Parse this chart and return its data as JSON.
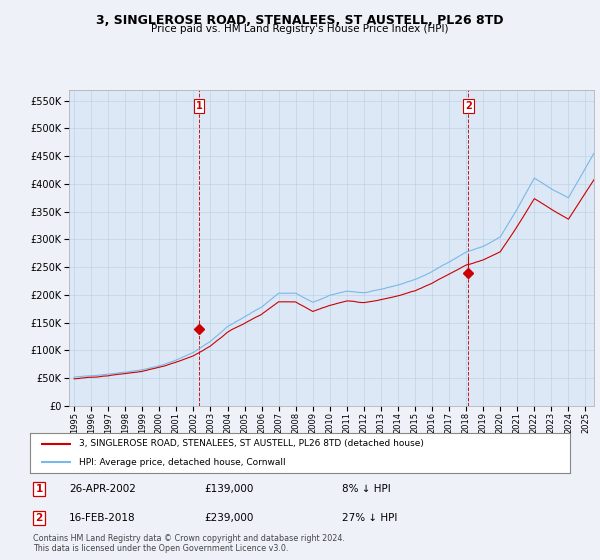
{
  "title": "3, SINGLEROSE ROAD, STENALEES, ST AUSTELL, PL26 8TD",
  "subtitle": "Price paid vs. HM Land Registry's House Price Index (HPI)",
  "legend_line1": "3, SINGLEROSE ROAD, STENALEES, ST AUSTELL, PL26 8TD (detached house)",
  "legend_line2": "HPI: Average price, detached house, Cornwall",
  "footnote1": "Contains HM Land Registry data © Crown copyright and database right 2024.",
  "footnote2": "This data is licensed under the Open Government Licence v3.0.",
  "transaction1_label": "1",
  "transaction1_date": "26-APR-2002",
  "transaction1_price": "£139,000",
  "transaction1_hpi": "8% ↓ HPI",
  "transaction2_label": "2",
  "transaction2_date": "16-FEB-2018",
  "transaction2_price": "£239,000",
  "transaction2_hpi": "27% ↓ HPI",
  "hpi_color": "#7ab8e8",
  "price_color": "#cc0000",
  "marker_color": "#cc0000",
  "vline_color": "#cc0000",
  "ylim": [
    0,
    570000
  ],
  "yticks": [
    0,
    50000,
    100000,
    150000,
    200000,
    250000,
    300000,
    350000,
    400000,
    450000,
    500000,
    550000
  ],
  "xlim_start": 1994.7,
  "xlim_end": 2025.5,
  "background_color": "#eef2f8",
  "plot_bg_color": "#dce8f5",
  "transaction1_x": 2002.32,
  "transaction1_y": 139000,
  "transaction2_x": 2018.12,
  "transaction2_y": 239000
}
